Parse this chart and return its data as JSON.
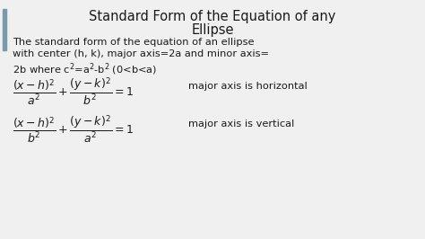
{
  "title_line1": "Standard Form of the Equation of any",
  "title_line2": "Ellipse",
  "body_line1": "The standard form of the equation of an ellipse",
  "body_line2": "with center (h, k), major axis=2a and minor axis=",
  "body_line3": "2b where c²=a²-b² (0<b<a)",
  "eq1_right": "major axis is horizontal",
  "eq2_right": "major axis is vertical",
  "bg_color": "#f0f0f0",
  "text_color": "#1a1a1a",
  "title_fontsize": 10.5,
  "body_fontsize": 8.2,
  "eq_fontsize": 9.0,
  "label_fontsize": 8.2,
  "left_bar_color": "#7a9aaa"
}
